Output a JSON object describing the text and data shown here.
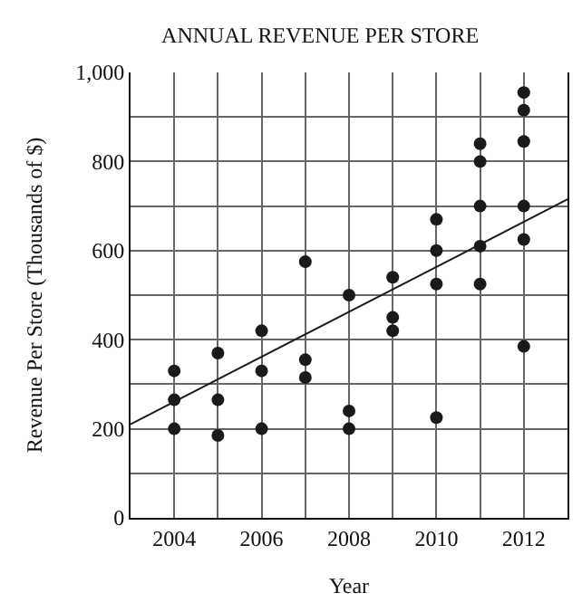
{
  "chart_data": {
    "type": "scatter",
    "title": "ANNUAL REVENUE PER STORE",
    "xlabel": "Year",
    "ylabel": "Revenue Per Store (Thousands of $)",
    "xlim": [
      2003,
      2013
    ],
    "ylim": [
      0,
      1000
    ],
    "xticks": [
      2004,
      {
        "value": 2005,
        "label": null
      },
      2006,
      {
        "value": 2007,
        "label": null
      },
      2008,
      {
        "value": 2009,
        "label": null
      },
      2010,
      {
        "value": 2011,
        "label": null
      },
      2012
    ],
    "yticks": [
      0,
      {
        "value": 100,
        "label": null
      },
      200,
      {
        "value": 300,
        "label": null
      },
      400,
      {
        "value": 500,
        "label": null
      },
      600,
      {
        "value": 700,
        "label": null
      },
      800,
      {
        "value": 900,
        "label": null
      },
      {
        "value": 1000,
        "label": "1,000"
      }
    ],
    "grid": true,
    "legend": false,
    "series": [
      {
        "marker": "circle",
        "color": "#1a1a1a",
        "x": [
          2004,
          2004,
          2004,
          2005,
          2005,
          2005,
          2006,
          2006,
          2006,
          2007,
          2007,
          2007,
          2008,
          2008,
          2008,
          2009,
          2009,
          2009,
          2010,
          2010,
          2010,
          2010,
          2011,
          2011,
          2011,
          2011,
          2011,
          2012,
          2012,
          2012,
          2012,
          2012,
          2012
        ],
        "values": [
          330,
          265,
          200,
          370,
          265,
          185,
          420,
          330,
          200,
          575,
          355,
          315,
          500,
          240,
          200,
          540,
          450,
          420,
          670,
          600,
          525,
          225,
          840,
          800,
          700,
          610,
          525,
          955,
          915,
          845,
          700,
          625,
          385
        ]
      },
      {
        "type": "line",
        "color": "#1a1a1a",
        "x": [
          2003,
          2013
        ],
        "values": [
          210,
          715
        ]
      }
    ]
  }
}
